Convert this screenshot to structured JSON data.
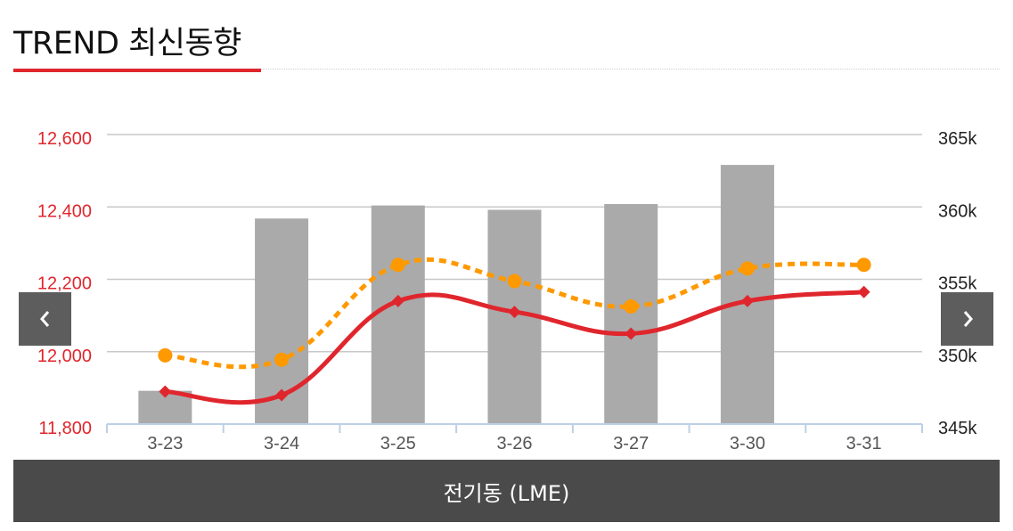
{
  "header": {
    "title": "TREND 최신동향"
  },
  "footer": {
    "label": "전기동 (LME)"
  },
  "nav": {
    "prev_icon": "chevron-left-icon",
    "next_icon": "chevron-right-icon"
  },
  "colors": {
    "accent": "#e0262d",
    "orange": "#ff9900",
    "bars": "#aaaaaa",
    "footer_bg": "#4a4a4a",
    "nav_bg": "#5d5d5d"
  },
  "chart_data": {
    "type": "bar",
    "categories": [
      "3-23",
      "3-24",
      "3-25",
      "3-26",
      "3-27",
      "3-30",
      "3-31"
    ],
    "left_axis": {
      "ticks": [
        "12,600",
        "12,400",
        "12,200",
        "12,000",
        "11,800"
      ],
      "range": [
        11800,
        12600
      ]
    },
    "right_axis": {
      "ticks": [
        "365k",
        "360k",
        "355k",
        "350k",
        "345k"
      ],
      "range": [
        345,
        365
      ]
    },
    "series": [
      {
        "type": "bar",
        "axis": "right",
        "color": "#aaaaaa",
        "values": [
          347.3,
          359.2,
          360.1,
          359.8,
          360.2,
          362.9,
          null
        ]
      },
      {
        "type": "line",
        "axis": "left",
        "color": "#e0262d",
        "marker": "diamond",
        "values": [
          11890,
          11880,
          12140,
          12110,
          12050,
          12140,
          12165
        ]
      },
      {
        "type": "line",
        "axis": "left",
        "color": "#ff9900",
        "marker": "circle",
        "dashed": true,
        "values": [
          11990,
          11978,
          12240,
          12195,
          12125,
          12230,
          12240
        ]
      }
    ],
    "grid": true
  }
}
